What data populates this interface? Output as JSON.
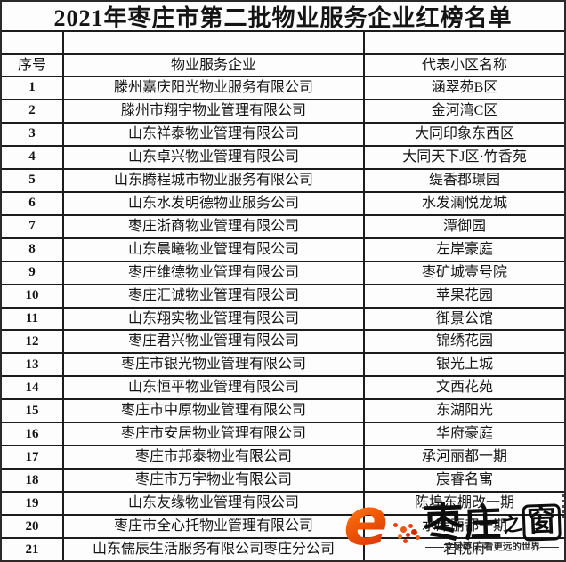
{
  "title": "2021年枣庄市第二批物业服务企业红榜名单",
  "table": {
    "headers": [
      "序号",
      "物业服务企业",
      "代表小区名称"
    ],
    "rows": [
      {
        "no": "1",
        "company": "滕州嘉庆阳光物业服务有限公司",
        "community": "涵翠苑B区"
      },
      {
        "no": "2",
        "company": "滕州市翔宇物业管理有限公司",
        "community": "金河湾C区"
      },
      {
        "no": "3",
        "company": "山东祥泰物业管理有限公司",
        "community": "大同印象东西区"
      },
      {
        "no": "4",
        "company": "山东卓兴物业管理有限公司",
        "community": "大同天下J区·竹香苑"
      },
      {
        "no": "5",
        "company": "山东腾程城市物业服务有限公司",
        "community": "缇香郡璟园"
      },
      {
        "no": "6",
        "company": "山东水发明德物业服务公司",
        "community": "水发澜悦龙城"
      },
      {
        "no": "7",
        "company": "枣庄浙商物业管理有限公司",
        "community": "潭御园"
      },
      {
        "no": "8",
        "company": "山东晨曦物业管理有限公司",
        "community": "左岸豪庭"
      },
      {
        "no": "9",
        "company": "枣庄维德物业管理有限公司",
        "community": "枣矿城壹号院"
      },
      {
        "no": "10",
        "company": "枣庄汇诚物业管理有限公司",
        "community": "苹果花园"
      },
      {
        "no": "11",
        "company": "山东翔实物业管理有限公司",
        "community": "御景公馆"
      },
      {
        "no": "12",
        "company": "枣庄君兴物业管理有限公司",
        "community": "锦绣花园"
      },
      {
        "no": "13",
        "company": "枣庄市银光物业管理有限公司",
        "community": "银光上城"
      },
      {
        "no": "14",
        "company": "山东恒平物业管理有限公司",
        "community": "文西花苑"
      },
      {
        "no": "15",
        "company": "枣庄市中原物业管理有限公司",
        "community": "东湖阳光"
      },
      {
        "no": "16",
        "company": "枣庄市安居物业管理有限公司",
        "community": "华府豪庭"
      },
      {
        "no": "17",
        "company": "枣庄市邦泰物业有限公司",
        "community": "承河丽都一期"
      },
      {
        "no": "18",
        "company": "枣庄市万宇物业有限公司",
        "community": "宸睿名寓"
      },
      {
        "no": "19",
        "company": "山东友缘物业管理有限公司",
        "community": "陈埠东棚改一期"
      },
      {
        "no": "20",
        "company": "枣庄市全心托物业管理有限公司",
        "community": "水岸丽都一期"
      },
      {
        "no": "21",
        "company": "山东儒辰生活服务有限公司枣庄分公司",
        "community": "君悦府"
      }
    ]
  },
  "watermark": {
    "logo_letter": "e",
    "brand_chars": [
      "枣",
      "庄",
      "之",
      "窗"
    ],
    "tagline": "——立足枣庄 看更远的世界——",
    "accent_orange": "#f58220",
    "accent_red": "#d9340a"
  }
}
